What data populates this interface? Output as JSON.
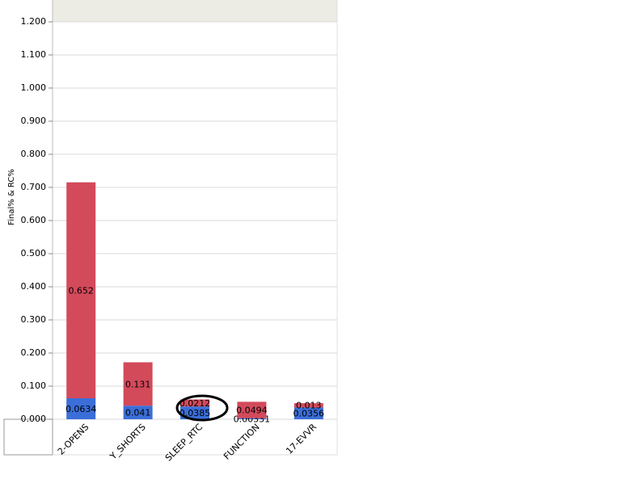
{
  "chart_data": {
    "type": "stacked_bar",
    "y_label": "Final% & RC%",
    "categories": [
      "2-OPENS",
      "Y_SHORTS",
      "SLEEP_RTC",
      "FUNCTION",
      "17-EVVR"
    ],
    "series": [
      {
        "color": "#3b6ed8",
        "values": [
          0.0634,
          0.041,
          0.0385,
          0.00331,
          0.0356
        ]
      },
      {
        "color": "#d34a5b",
        "values": [
          0.652,
          0.131,
          0.0212,
          0.0494,
          0.013
        ]
      }
    ],
    "ylim": [
      0,
      1.2
    ],
    "yticks": [
      {
        "value": 0,
        "label": "0.000"
      },
      {
        "value": 0.1,
        "label": "0.100"
      },
      {
        "value": 0.2,
        "label": "0.200"
      },
      {
        "value": 0.3,
        "label": "0.300"
      },
      {
        "value": 0.4,
        "label": "0.400"
      },
      {
        "value": 0.5,
        "label": "0.500"
      },
      {
        "value": 0.6,
        "label": "0.600"
      },
      {
        "value": 0.7,
        "label": "0.700"
      },
      {
        "value": 0.8,
        "label": "0.800"
      },
      {
        "value": 0.9,
        "label": "0.900"
      },
      {
        "value": 1.0,
        "label": "1.000"
      },
      {
        "value": 1.1,
        "label": "1.100"
      },
      {
        "value": 1.2,
        "label": "1.200"
      }
    ],
    "grid": true
  }
}
